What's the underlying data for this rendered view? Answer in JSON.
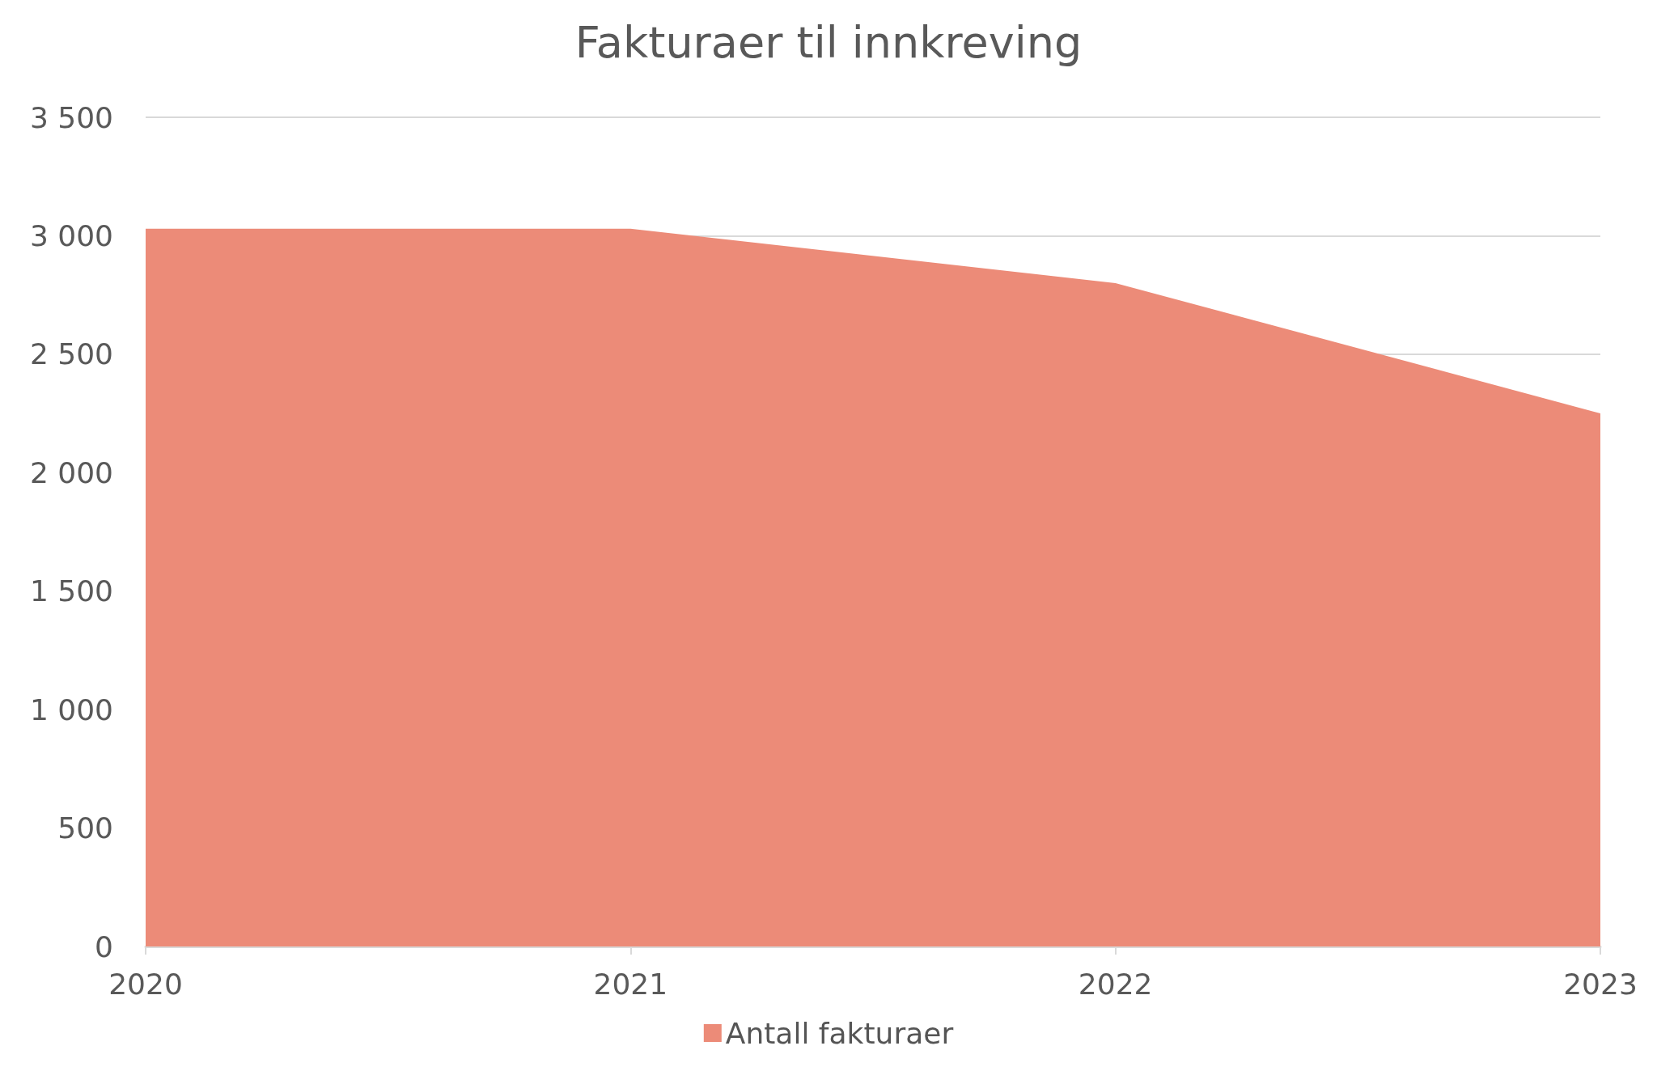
{
  "chart_data": {
    "type": "area",
    "title": "Fakturaer til innkreving",
    "categories": [
      "2020",
      "2021",
      "2022",
      "2023"
    ],
    "series": [
      {
        "name": "Antall fakturaer",
        "color": "#ec8b78",
        "values": [
          3030,
          3030,
          2800,
          2250
        ]
      }
    ],
    "ylim": [
      0,
      3500
    ],
    "yticks": [
      {
        "value": 0,
        "label": "0"
      },
      {
        "value": 500,
        "label": "500"
      },
      {
        "value": 1000,
        "label": "1 000"
      },
      {
        "value": 1500,
        "label": "1 500"
      },
      {
        "value": 2000,
        "label": "2 000"
      },
      {
        "value": 2500,
        "label": "2 500"
      },
      {
        "value": 3000,
        "label": "3 000"
      },
      {
        "value": 3500,
        "label": "3 500"
      }
    ],
    "grid": "y",
    "legend": "bottom"
  }
}
